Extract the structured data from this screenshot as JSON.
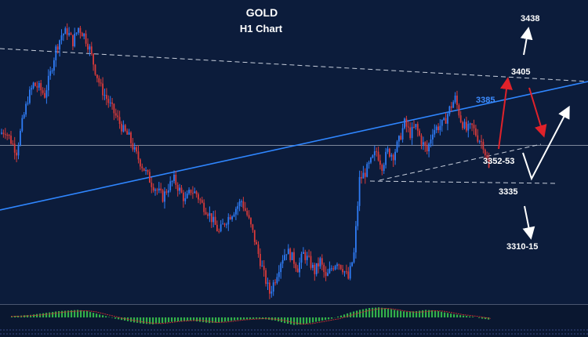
{
  "chart_data": {
    "type": "candlestick",
    "title": "GOLD",
    "subtitle": "H1 Chart",
    "level_labels": [
      {
        "name": "level-3438",
        "text": "3438",
        "value": 3438
      },
      {
        "name": "level-3405",
        "text": "3405",
        "value": 3405
      },
      {
        "name": "level-3385",
        "text": "3385",
        "value": 3385,
        "color": "#3d8cff"
      },
      {
        "name": "level-3352-53",
        "text": "3352-53",
        "value": 3352.5
      },
      {
        "name": "level-3335",
        "text": "3335",
        "value": 3335
      },
      {
        "name": "level-3310-15",
        "text": "3310-15",
        "value": 3312.5
      }
    ],
    "colors": {
      "background": "#0c1c3b",
      "bull": "#2f7cf6",
      "bear": "#d83a3a",
      "trendline": "#2f86ff",
      "dashed": "#c8cfdc",
      "price_line": "#8a93a6",
      "red_arrow": "#e0222a",
      "white_arrow": "#ffffff",
      "macd": "#33b04a"
    },
    "close_path": [
      3372,
      3374,
      3368,
      3362,
      3378,
      3392,
      3400,
      3398,
      3394,
      3406,
      3420,
      3428,
      3430,
      3424,
      3432,
      3428,
      3420,
      3408,
      3398,
      3392,
      3386,
      3380,
      3374,
      3370,
      3362,
      3356,
      3350,
      3344,
      3340,
      3336,
      3342,
      3346,
      3340,
      3334,
      3340,
      3338,
      3332,
      3328,
      3322,
      3316,
      3322,
      3326,
      3330,
      3334,
      3326,
      3316,
      3304,
      3292,
      3282,
      3290,
      3300,
      3306,
      3302,
      3296,
      3304,
      3300,
      3294,
      3300,
      3290,
      3296,
      3300,
      3296,
      3290,
      3304,
      3346,
      3350,
      3356,
      3362,
      3354,
      3362,
      3360,
      3368,
      3378,
      3372,
      3376,
      3368,
      3362,
      3374,
      3376,
      3378,
      3386,
      3392,
      3380,
      3374,
      3376,
      3370,
      3366,
      3352
    ],
    "macd_values": [
      0.2,
      0.3,
      0.4,
      0.6,
      0.8,
      1.0,
      1.1,
      1.2,
      1.0,
      0.6,
      0.2,
      -0.2,
      -0.5,
      -0.8,
      -1.0,
      -1.1,
      -0.9,
      -0.7,
      -0.6,
      -0.5,
      -0.7,
      -0.9,
      -0.8,
      -0.6,
      -0.4,
      -0.3,
      -0.2,
      -0.3,
      -0.5,
      -0.9,
      -1.2,
      -1.1,
      -0.8,
      -0.5,
      -0.2,
      0.3,
      0.8,
      1.2,
      1.5,
      1.6,
      1.4,
      1.1,
      0.9,
      1.0,
      1.2,
      1.1,
      0.8,
      0.5,
      0.3,
      0.1,
      -0.2,
      -0.4
    ]
  }
}
